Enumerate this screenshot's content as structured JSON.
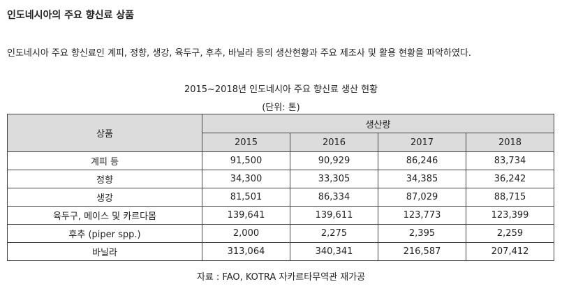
{
  "heading": "인도네시아의 주요 향신료 상품",
  "description": "인도네시아 주요 향신료인 계피, 정향, 생강, 육두구, 후추, 바닐라 등의 생산현황과 주요 제조사 및 활용 현황을 파악하였다.",
  "table": {
    "title": "2015~2018년 인도네시아 주요 향신료 생산 현황",
    "unit": "(단위: 톤)",
    "product_header": "상품",
    "production_header": "생산량",
    "years": [
      "2015",
      "2016",
      "2017",
      "2018"
    ],
    "rows": [
      {
        "name": "계피 등",
        "values": [
          "91,500",
          "90,929",
          "86,246",
          "83,734"
        ]
      },
      {
        "name": "정향",
        "values": [
          "34,300",
          "33,305",
          "34,385",
          "36,242"
        ]
      },
      {
        "name": "생강",
        "values": [
          "81,501",
          "86,334",
          "87,029",
          "88,715"
        ]
      },
      {
        "name": "육두구, 메이스 및 카르다몸",
        "values": [
          "139,641",
          "139,611",
          "123,773",
          "123,399"
        ]
      },
      {
        "name": "후추 (piper spp.)",
        "values": [
          "2,000",
          "2,275",
          "2,395",
          "2,259"
        ]
      },
      {
        "name": "바닐라",
        "values": [
          "313,064",
          "340,341",
          "216,587",
          "207,412"
        ]
      }
    ],
    "source": "자료 : FAO, KOTRA 자카르타무역관 재가공"
  },
  "colors": {
    "header_bg": "#dcdcdc",
    "border": "#444444",
    "text": "#222222"
  }
}
